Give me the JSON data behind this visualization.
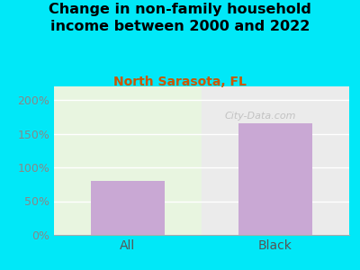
{
  "title": "Change in non-family household\nincome between 2000 and 2022",
  "subtitle": "North Sarasota, FL",
  "categories": [
    "All",
    "Black"
  ],
  "values": [
    80,
    165
  ],
  "bar_color": "#c9a8d4",
  "title_fontsize": 11.5,
  "subtitle_fontsize": 10,
  "subtitle_color": "#cc5500",
  "title_color": "#000000",
  "ylim": [
    0,
    220
  ],
  "yticks": [
    0,
    50,
    100,
    150,
    200
  ],
  "background_outer": "#00e8f8",
  "background_inner_left": "#e8f5e0",
  "background_inner_right": "#ebebeb",
  "watermark": "City-Data.com",
  "tick_label_color": "#888888",
  "tick_label_fontsize": 9,
  "xtick_label_fontsize": 10,
  "xtick_label_color": "#555555",
  "bar_width": 0.5
}
